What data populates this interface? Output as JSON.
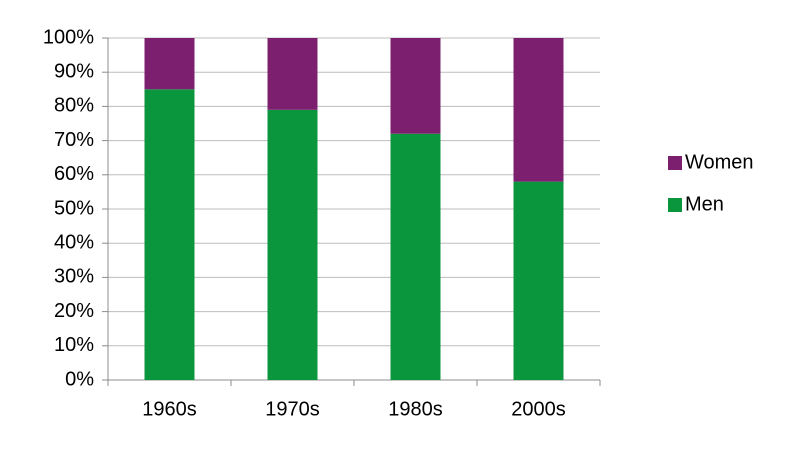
{
  "chart_data": {
    "type": "stacked_bar",
    "categories": [
      "1960s",
      "1970s",
      "1980s",
      "2000s"
    ],
    "series": [
      {
        "name": "Men",
        "color": "#0a963c",
        "values": [
          85,
          79,
          72,
          58
        ]
      },
      {
        "name": "Women",
        "color": "#7d1f6f",
        "values": [
          15,
          21,
          28,
          42
        ]
      }
    ],
    "ylim": [
      0,
      100
    ],
    "yticks": [
      {
        "value": 0,
        "label": "0%"
      },
      {
        "value": 10,
        "label": "10%"
      },
      {
        "value": 20,
        "label": "20%"
      },
      {
        "value": 30,
        "label": "30%"
      },
      {
        "value": 40,
        "label": "40%"
      },
      {
        "value": 50,
        "label": "50%"
      },
      {
        "value": 60,
        "label": "60%"
      },
      {
        "value": 70,
        "label": "70%"
      },
      {
        "value": 80,
        "label": "80%"
      },
      {
        "value": 90,
        "label": "90%"
      },
      {
        "value": 100,
        "label": "100%"
      }
    ],
    "grid": true,
    "legend": "right"
  }
}
